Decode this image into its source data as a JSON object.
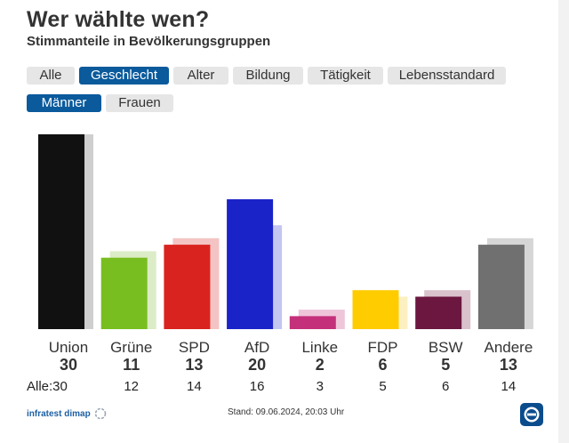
{
  "header": {
    "title": "Wer wählte wen?",
    "subtitle": "Stimmanteile in Bevölkerungsgruppen"
  },
  "filter_tabs": [
    {
      "label": "Alle",
      "active": false
    },
    {
      "label": "Geschlecht",
      "active": true
    },
    {
      "label": "Alter",
      "active": false
    },
    {
      "label": "Bildung",
      "active": false
    },
    {
      "label": "Tätigkeit",
      "active": false
    },
    {
      "label": "Lebensstandard",
      "active": false
    }
  ],
  "sub_tabs": [
    {
      "label": "Männer",
      "active": true
    },
    {
      "label": "Frauen",
      "active": false
    }
  ],
  "chart_data": {
    "type": "bar",
    "title": "Wer wählte wen?",
    "subtitle": "Stimmanteile in Bevölkerungsgruppen",
    "categories": [
      "Union",
      "Grüne",
      "SPD",
      "AfD",
      "Linke",
      "FDP",
      "BSW",
      "Andere"
    ],
    "series": [
      {
        "name": "Männer",
        "values": [
          30,
          11,
          13,
          20,
          2,
          6,
          5,
          13
        ]
      },
      {
        "name": "Alle",
        "values": [
          30,
          12,
          14,
          16,
          3,
          5,
          6,
          14
        ]
      }
    ],
    "colors": [
      "#111111",
      "#78be20",
      "#d9231f",
      "#1a23c8",
      "#c4307a",
      "#ffcc00",
      "#6b1740",
      "#707070"
    ],
    "shadow_colors": [
      "#cfcfcf",
      "#dbecc6",
      "#f3c4c3",
      "#c3c6f0",
      "#efc5da",
      "#fdf0c0",
      "#d9c2cc",
      "#d6d6d6"
    ],
    "ylim": [
      0,
      30
    ],
    "alle_prefix": "Alle:"
  },
  "footer": {
    "source": "infratest dimap",
    "stand": "Stand: 09.06.2024, 20:03 Uhr"
  }
}
